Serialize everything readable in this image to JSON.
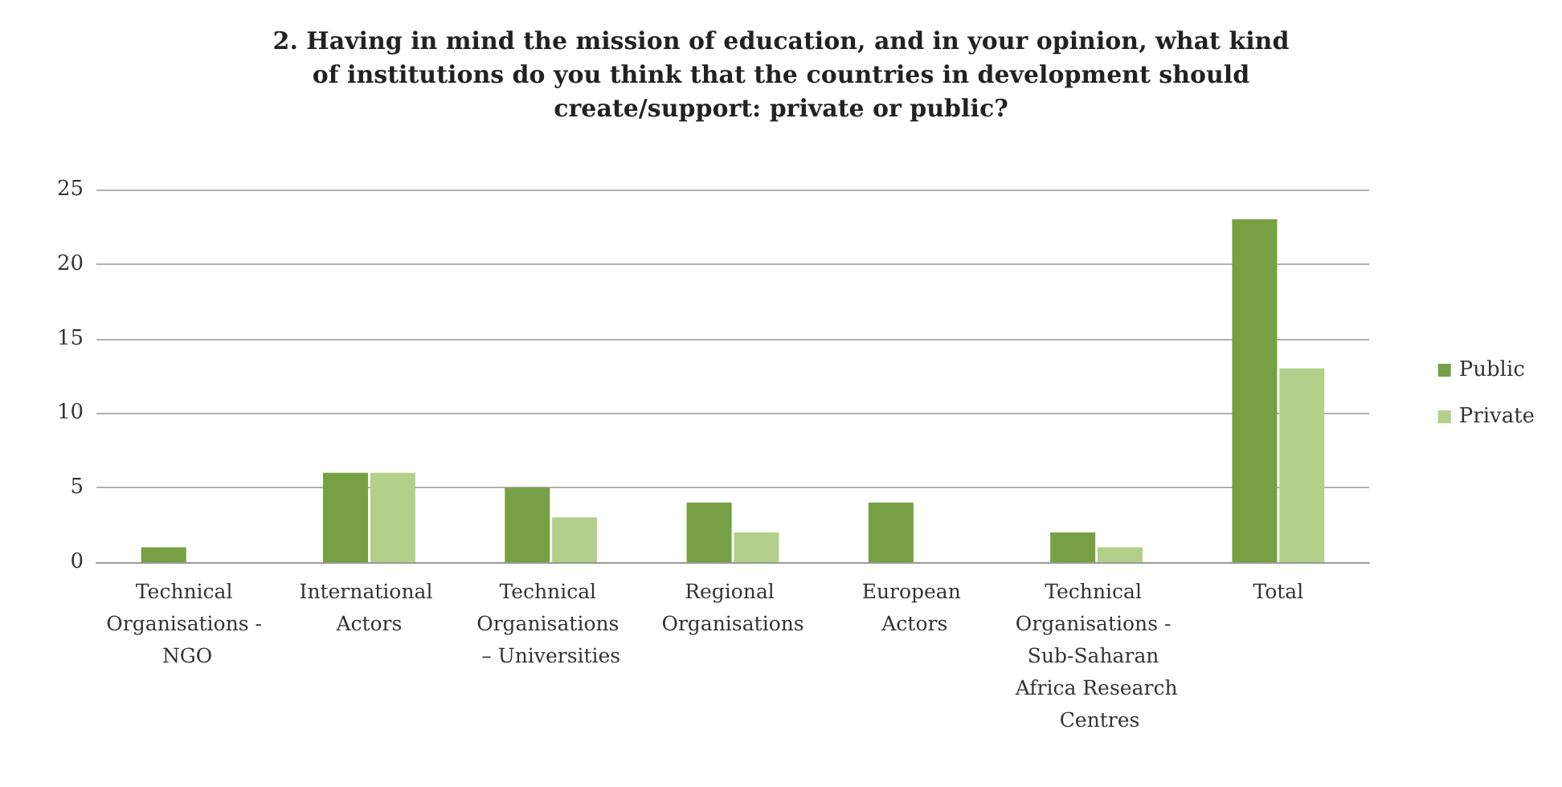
{
  "chart_data": {
    "type": "bar",
    "title": "2. Having in mind the mission of education, and in your opinion, what kind of institutions do you think that the countries in development should create/support: private or public?",
    "categories": [
      "Technical Organisations - NGO",
      "International Actors",
      "Technical Organisations – Universities",
      "Regional Organisations",
      "European Actors",
      "Technical Organisations - Sub-Saharan Africa Research Centres",
      "Total"
    ],
    "series": [
      {
        "name": "Public",
        "color": "#76a043",
        "values": [
          1,
          6,
          5,
          4,
          4,
          2,
          23
        ]
      },
      {
        "name": "Private",
        "color": "#b2d08a",
        "values": [
          0,
          6,
          3,
          2,
          0,
          1,
          13
        ]
      }
    ],
    "ylim": [
      0,
      25
    ],
    "yticks": [
      0,
      5,
      10,
      15,
      20,
      25
    ],
    "grid": "y",
    "legend": "right"
  }
}
